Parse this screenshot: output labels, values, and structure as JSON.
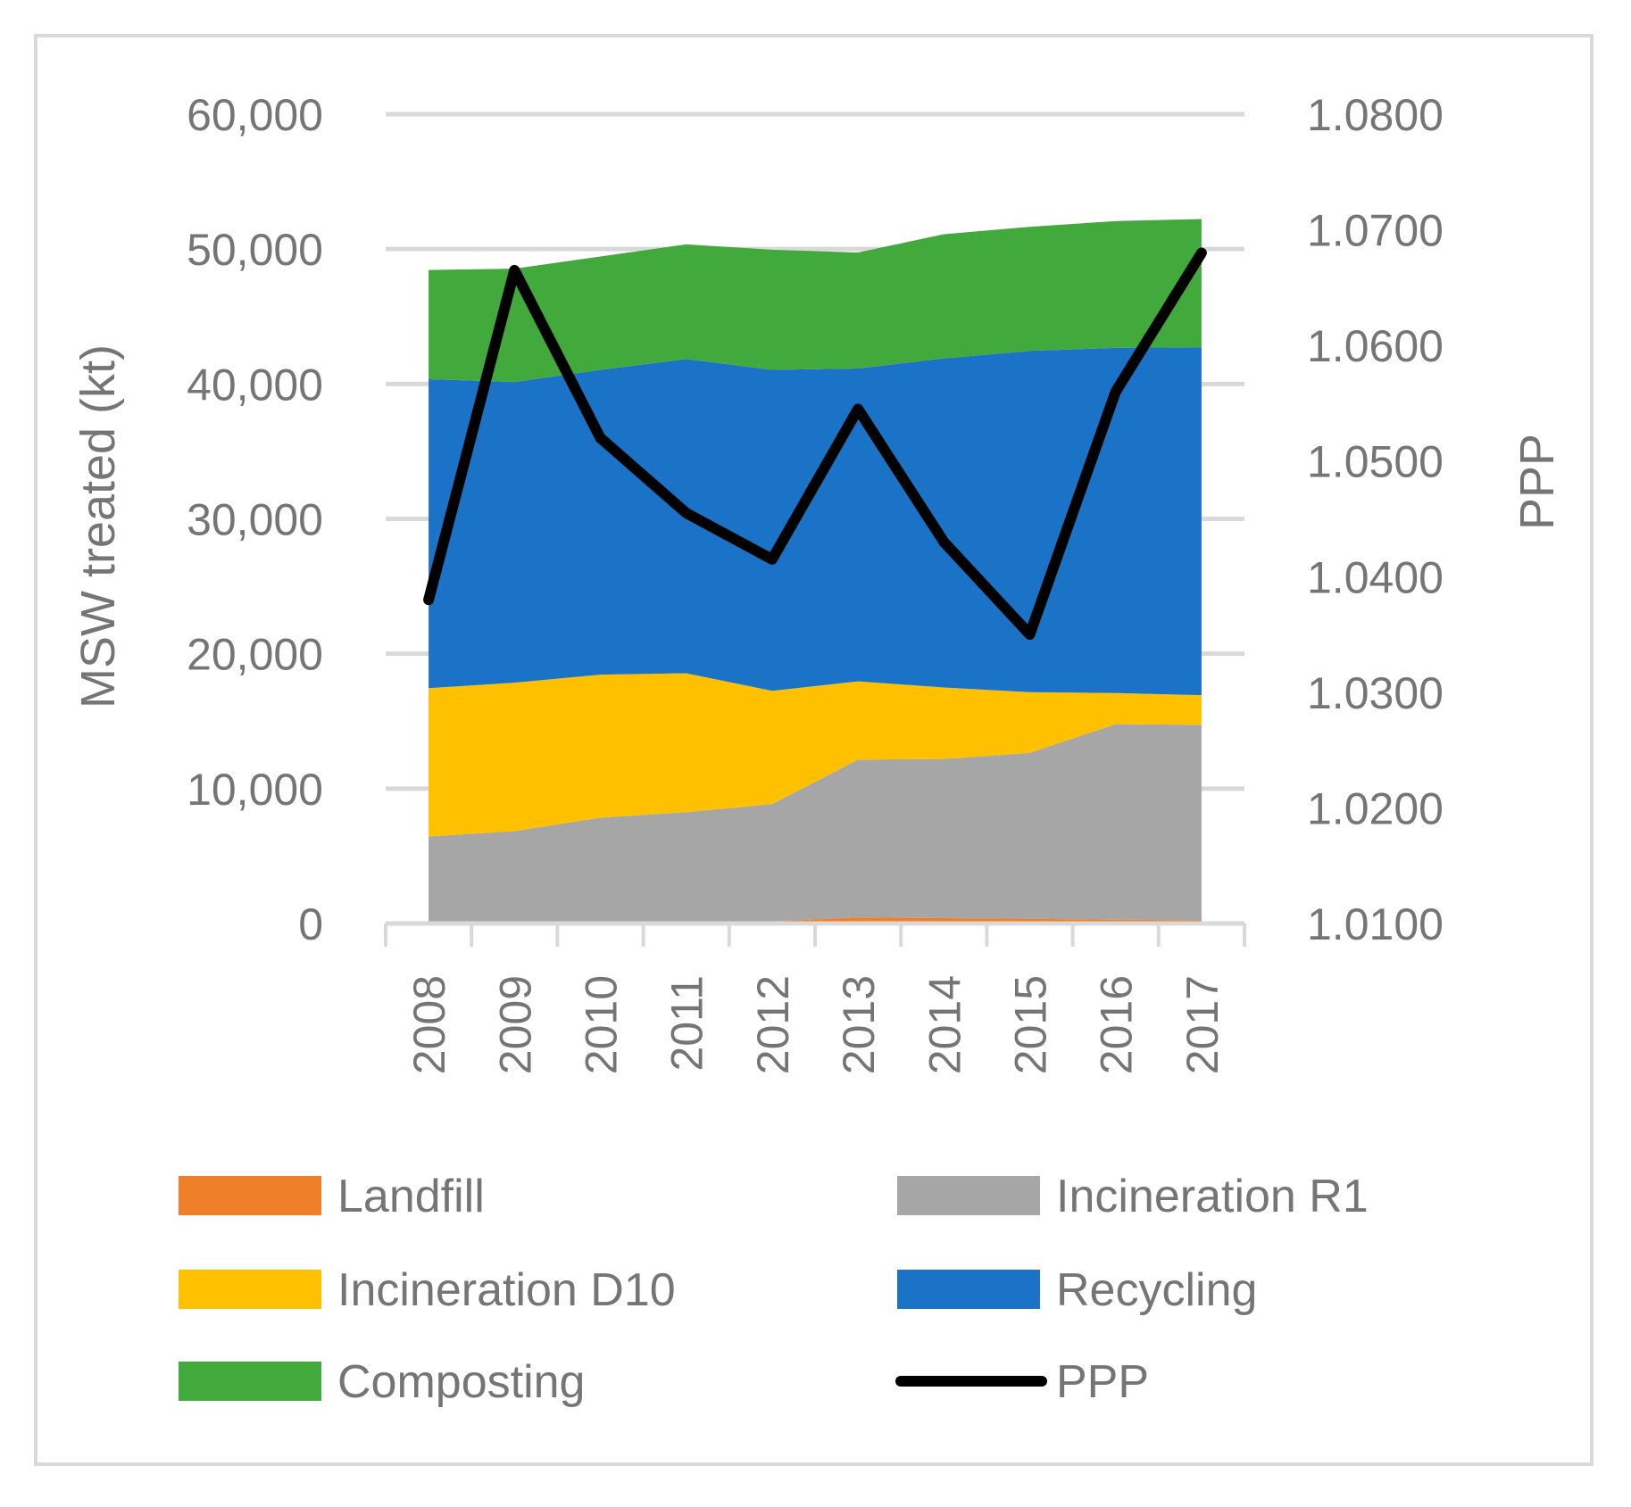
{
  "chart_data": {
    "type": "stacked-area-with-line",
    "categories": [
      "2008",
      "2009",
      "2010",
      "2011",
      "2012",
      "2013",
      "2014",
      "2015",
      "2016",
      "2017"
    ],
    "series": [
      {
        "name": "Landfill",
        "type": "area",
        "color": "#f07f2a",
        "values": [
          150,
          150,
          150,
          150,
          150,
          450,
          400,
          350,
          280,
          230
        ]
      },
      {
        "name": "Incineration R1",
        "type": "area",
        "color": "#a6a6a6",
        "values": [
          6300,
          6700,
          7700,
          8100,
          8700,
          11700,
          11800,
          12300,
          14500,
          14500
        ]
      },
      {
        "name": "Incineration D10",
        "type": "area",
        "color": "#ffc000",
        "values": [
          11000,
          11000,
          10600,
          10300,
          8400,
          5800,
          5300,
          4500,
          2300,
          2200
        ]
      },
      {
        "name": "Recycling",
        "type": "area",
        "color": "#1a73c6",
        "values": [
          22900,
          22300,
          22600,
          23300,
          23800,
          23200,
          24400,
          25300,
          25600,
          25800
        ]
      },
      {
        "name": "Composting",
        "type": "area",
        "color": "#42a93d",
        "values": [
          8100,
          8400,
          8400,
          8500,
          8900,
          8600,
          9200,
          9200,
          9400,
          9500
        ]
      },
      {
        "name": "PPP",
        "type": "line",
        "axis": "right",
        "color": "#000000",
        "values": [
          1.038,
          1.0665,
          1.052,
          1.0455,
          1.0415,
          1.0545,
          1.043,
          1.035,
          1.056,
          1.068
        ]
      }
    ],
    "ylabel": "MSW treated (kt)",
    "y2label": "PPP",
    "ylim": [
      0,
      60000
    ],
    "y2lim": [
      1.01,
      1.08
    ],
    "yticks": [
      "0",
      "10,000",
      "20,000",
      "30,000",
      "40,000",
      "50,000",
      "60,000"
    ],
    "y2ticks": [
      "1.0100",
      "1.0200",
      "1.0300",
      "1.0400",
      "1.0500",
      "1.0600",
      "1.0700",
      "1.0800"
    ],
    "grid": true,
    "legend_position": "bottom"
  },
  "legend": [
    {
      "label": "Landfill",
      "color": "#f07f2a",
      "kind": "box"
    },
    {
      "label": "Incineration R1",
      "color": "#a6a6a6",
      "kind": "box"
    },
    {
      "label": "Incineration D10",
      "color": "#ffc000",
      "kind": "box"
    },
    {
      "label": "Recycling",
      "color": "#1a73c6",
      "kind": "box"
    },
    {
      "label": "Composting",
      "color": "#42a93d",
      "kind": "box"
    },
    {
      "label": "PPP",
      "color": "#000000",
      "kind": "line"
    }
  ]
}
